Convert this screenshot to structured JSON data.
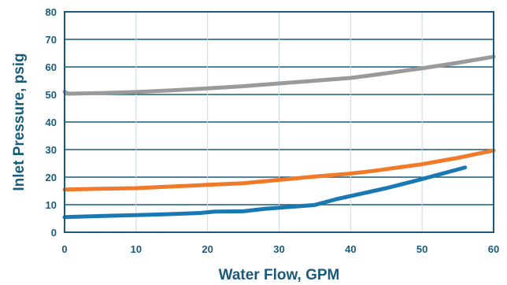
{
  "chart_data": {
    "type": "line",
    "title": "",
    "xlabel": "Water Flow, GPM",
    "ylabel": "Inlet Pressure, psig",
    "xlim": [
      0,
      60
    ],
    "ylim": [
      0,
      80
    ],
    "xticks": [
      0,
      10,
      20,
      30,
      40,
      50,
      60
    ],
    "yticks": [
      0,
      10,
      20,
      30,
      40,
      50,
      60,
      70,
      80
    ],
    "grid": "vertical",
    "legend": "none",
    "series": [
      {
        "color": "#9a9a9a",
        "points": [
          [
            0,
            51
          ],
          [
            0.5,
            50.3
          ],
          [
            5,
            50.5
          ],
          [
            10,
            50.9
          ],
          [
            15,
            51.5
          ],
          [
            20,
            52.2
          ],
          [
            25,
            53
          ],
          [
            30,
            54
          ],
          [
            35,
            55
          ],
          [
            40,
            56
          ],
          [
            43,
            57
          ],
          [
            50,
            59.5
          ],
          [
            55,
            61.5
          ],
          [
            60,
            63.7
          ]
        ]
      },
      {
        "color": "#f07a2a",
        "points": [
          [
            0,
            15.5
          ],
          [
            5,
            15.8
          ],
          [
            10,
            16
          ],
          [
            15,
            16.6
          ],
          [
            20,
            17.2
          ],
          [
            25,
            17.8
          ],
          [
            30,
            19
          ],
          [
            35,
            20.2
          ],
          [
            40,
            21.3
          ],
          [
            43,
            22.2
          ],
          [
            50,
            24.7
          ],
          [
            55,
            27
          ],
          [
            60,
            29.7
          ]
        ]
      },
      {
        "color": "#1a79b2",
        "points": [
          [
            0,
            5.5
          ],
          [
            5,
            5.9
          ],
          [
            10,
            6.2
          ],
          [
            15,
            6.6
          ],
          [
            19,
            7
          ],
          [
            21,
            7.5
          ],
          [
            25,
            7.6
          ],
          [
            28,
            8.5
          ],
          [
            32,
            9.3
          ],
          [
            35,
            9.9
          ],
          [
            38,
            12
          ],
          [
            45,
            16
          ],
          [
            50,
            19.3
          ],
          [
            56,
            23.5
          ]
        ]
      }
    ]
  }
}
